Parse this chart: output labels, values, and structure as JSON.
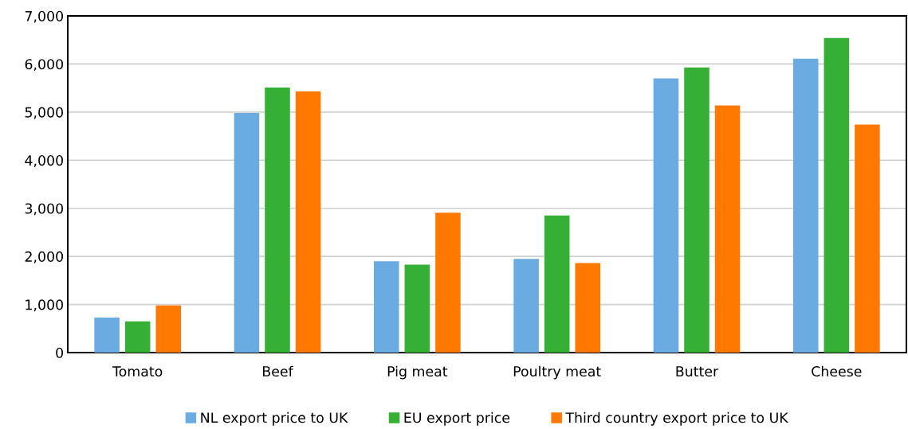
{
  "chart_data": {
    "type": "bar",
    "categories": [
      "Tomato",
      "Beef",
      "Pig meat",
      "Poultry meat",
      "Butter",
      "Cheese"
    ],
    "series": [
      {
        "name": "NL export price to UK",
        "color": "#6aace2",
        "values": [
          730,
          4980,
          1900,
          1950,
          5700,
          6110
        ]
      },
      {
        "name": "EU export price",
        "color": "#35b034",
        "values": [
          650,
          5510,
          1830,
          2850,
          5930,
          6540
        ]
      },
      {
        "name": "Third country export price to UK",
        "color": "#ff7900",
        "values": [
          980,
          5430,
          2910,
          1860,
          5140,
          4740
        ]
      }
    ],
    "ylim": [
      0,
      7000
    ],
    "yticks": [
      {
        "value": 0,
        "label": "0"
      },
      {
        "value": 1000,
        "label": "1,000"
      },
      {
        "value": 2000,
        "label": "2,000"
      },
      {
        "value": 3000,
        "label": "3,000"
      },
      {
        "value": 4000,
        "label": "4,000"
      },
      {
        "value": 5000,
        "label": "5,000"
      },
      {
        "value": 6000,
        "label": "6,000"
      },
      {
        "value": 7000,
        "label": "7,000"
      }
    ],
    "grid": "y",
    "legend": "bottom"
  }
}
